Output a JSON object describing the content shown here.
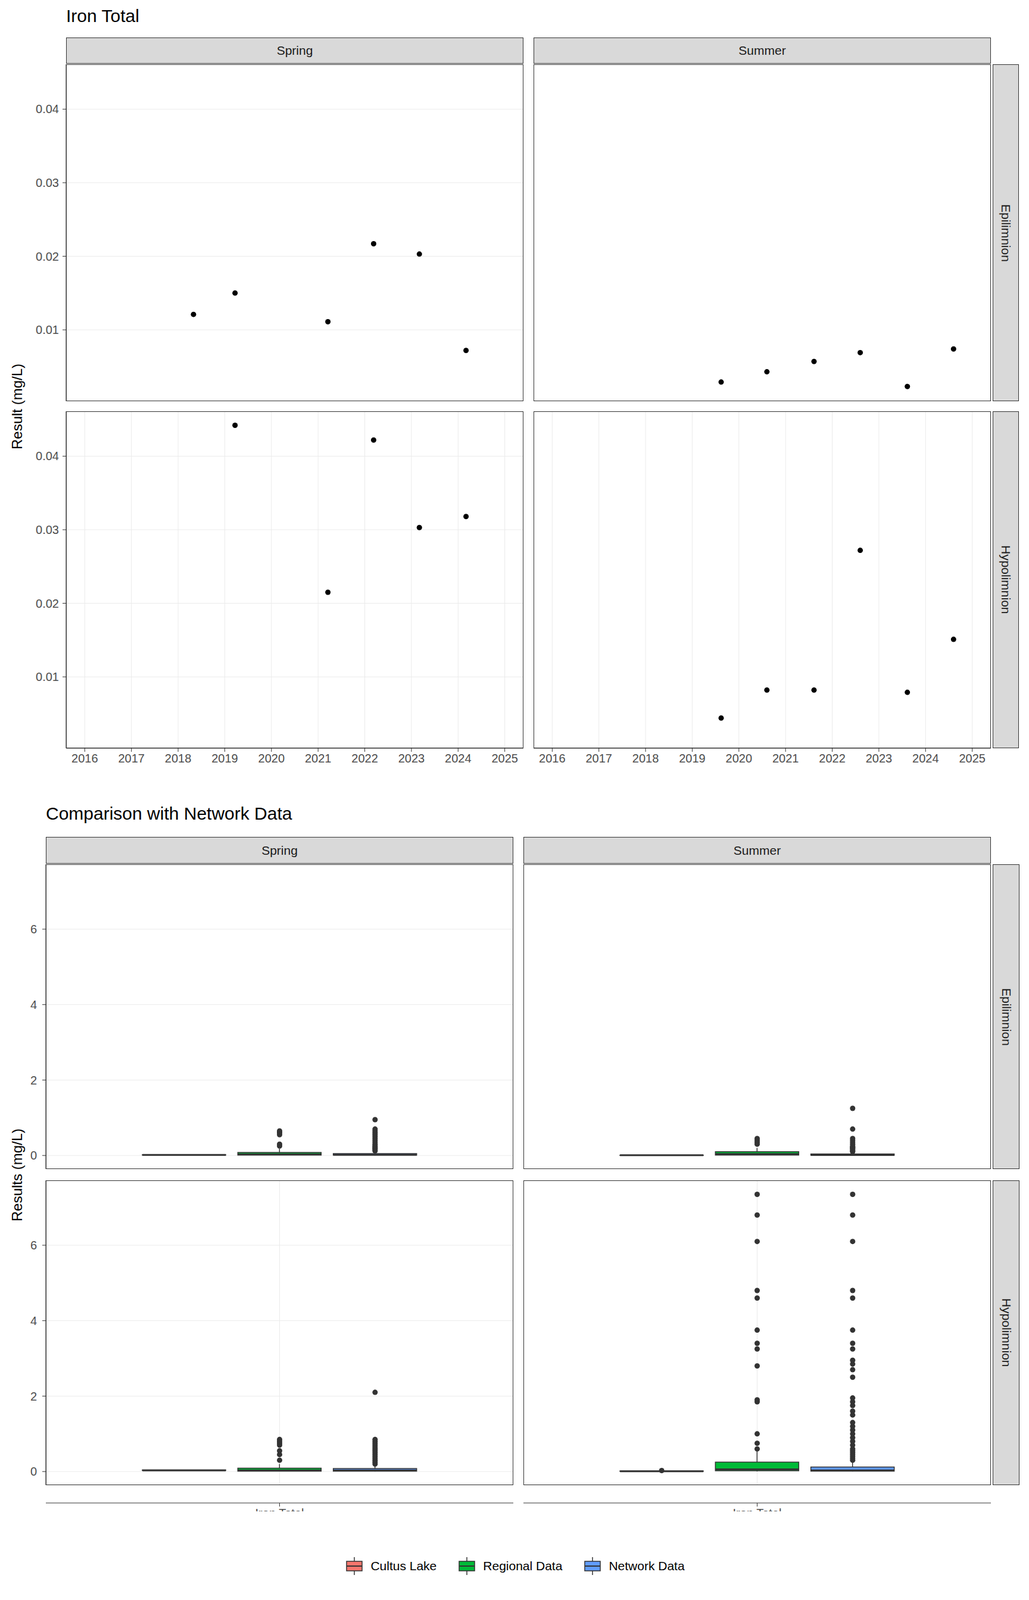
{
  "chart_data": [
    {
      "type": "scatter",
      "title": "Iron Total",
      "y_label": "Result (mg/L)",
      "columns": [
        "Spring",
        "Summer"
      ],
      "rows": [
        "Epilimnion",
        "Hypolimnion"
      ],
      "color": "#000000",
      "grid": true,
      "xlim": [
        2015.6,
        2025.4
      ],
      "xticks": [
        2016,
        2017,
        2018,
        2019,
        2020,
        2021,
        2022,
        2023,
        2024,
        2025
      ],
      "ylim": [
        0.0003,
        0.0461
      ],
      "yticks": [
        0.01,
        0.02,
        0.03,
        0.04
      ],
      "panels": [
        {
          "column": "Spring",
          "row": "Epilimnion",
          "x": [
            2018.33,
            2019.22,
            2021.21,
            2022.19,
            2023.17,
            2024.17
          ],
          "values": [
            0.0121,
            0.015,
            0.0111,
            0.0217,
            0.0203,
            0.0072
          ]
        },
        {
          "column": "Summer",
          "row": "Epilimnion",
          "x": [
            2019.62,
            2020.6,
            2021.61,
            2022.6,
            2023.61,
            2024.6
          ],
          "values": [
            0.0029,
            0.0043,
            0.0057,
            0.0069,
            0.0023,
            0.0074
          ]
        },
        {
          "column": "Spring",
          "row": "Hypolimnion",
          "x": [
            2019.22,
            2021.21,
            2022.19,
            2023.17,
            2024.17
          ],
          "values": [
            0.0442,
            0.0215,
            0.0422,
            0.0303,
            0.0318
          ]
        },
        {
          "column": "Summer",
          "row": "Hypolimnion",
          "x": [
            2019.62,
            2020.6,
            2021.61,
            2022.6,
            2023.61,
            2024.6
          ],
          "values": [
            0.0044,
            0.0082,
            0.0082,
            0.0272,
            0.0079,
            0.0151
          ]
        }
      ]
    },
    {
      "type": "box",
      "title": "Comparison with Network Data",
      "y_label": "Results (mg/L)",
      "categories": [
        "Iron Total"
      ],
      "columns": [
        "Spring",
        "Summer"
      ],
      "rows": [
        "Epilimnion",
        "Hypolimnion"
      ],
      "grid": true,
      "legend": "bottom",
      "ylim": [
        -0.36,
        7.72
      ],
      "yticks": [
        0,
        2,
        4,
        6
      ],
      "series": [
        {
          "name": "Cultus Lake",
          "color": "#F8766D"
        },
        {
          "name": "Regional Data",
          "color": "#00BA38"
        },
        {
          "name": "Network Data",
          "color": "#619CFF"
        }
      ],
      "panels": [
        {
          "column": "Spring",
          "row": "Epilimnion",
          "boxes": [
            {
              "min": 0.0072,
              "q1": 0.0114,
              "median": 0.0136,
              "q3": 0.019,
              "max": 0.0217,
              "outliers": []
            },
            {
              "min": 0.002,
              "q1": 0.01,
              "median": 0.03,
              "q3": 0.08,
              "max": 0.18,
              "outliers": [
                0.25,
                0.3,
                0.55,
                0.6,
                0.62,
                0.65
              ]
            },
            {
              "min": 0.001,
              "q1": 0.01,
              "median": 0.02,
              "q3": 0.05,
              "max": 0.11,
              "outliers": [
                0.12,
                0.15,
                0.18,
                0.2,
                0.23,
                0.26,
                0.3,
                0.35,
                0.4,
                0.45,
                0.5,
                0.55,
                0.6,
                0.65,
                0.7,
                0.95
              ]
            }
          ]
        },
        {
          "column": "Summer",
          "row": "Epilimnion",
          "boxes": [
            {
              "min": 0.0023,
              "q1": 0.0033,
              "median": 0.005,
              "q3": 0.0066,
              "max": 0.0074,
              "outliers": []
            },
            {
              "min": 0.002,
              "q1": 0.01,
              "median": 0.04,
              "q3": 0.1,
              "max": 0.2,
              "outliers": [
                0.3,
                0.35,
                0.4,
                0.45
              ]
            },
            {
              "min": 0.001,
              "q1": 0.005,
              "median": 0.015,
              "q3": 0.04,
              "max": 0.09,
              "outliers": [
                0.1,
                0.12,
                0.15,
                0.18,
                0.2,
                0.22,
                0.25,
                0.3,
                0.35,
                0.4,
                0.45,
                0.7,
                1.25
              ]
            }
          ]
        },
        {
          "column": "Spring",
          "row": "Hypolimnion",
          "boxes": [
            {
              "min": 0.0215,
              "q1": 0.0303,
              "median": 0.0318,
              "q3": 0.0422,
              "max": 0.0442,
              "outliers": []
            },
            {
              "min": 0.002,
              "q1": 0.01,
              "median": 0.03,
              "q3": 0.09,
              "max": 0.2,
              "outliers": [
                0.3,
                0.45,
                0.55,
                0.7,
                0.75,
                0.8,
                0.85
              ]
            },
            {
              "min": 0.001,
              "q1": 0.01,
              "median": 0.03,
              "q3": 0.08,
              "max": 0.18,
              "outliers": [
                0.2,
                0.25,
                0.3,
                0.35,
                0.4,
                0.45,
                0.5,
                0.55,
                0.6,
                0.65,
                0.7,
                0.75,
                0.8,
                0.85,
                2.1
              ]
            }
          ]
        },
        {
          "column": "Summer",
          "row": "Hypolimnion",
          "boxes": [
            {
              "min": 0.0044,
              "q1": 0.008,
              "median": 0.0082,
              "q3": 0.0134,
              "max": 0.0151,
              "outliers": [
                0.0272
              ]
            },
            {
              "min": 0.002,
              "q1": 0.02,
              "median": 0.06,
              "q3": 0.25,
              "max": 0.55,
              "outliers": [
                0.6,
                0.75,
                1.0,
                1.85,
                1.9,
                2.8,
                3.25,
                3.4,
                3.75,
                4.6,
                4.8,
                6.1,
                6.8,
                7.35
              ]
            },
            {
              "min": 0.001,
              "q1": 0.01,
              "median": 0.03,
              "q3": 0.12,
              "max": 0.26,
              "outliers": [
                0.3,
                0.35,
                0.4,
                0.45,
                0.5,
                0.55,
                0.6,
                0.7,
                0.8,
                0.9,
                1.0,
                1.1,
                1.2,
                1.3,
                1.5,
                1.6,
                1.75,
                1.85,
                1.95,
                2.5,
                2.7,
                2.85,
                2.95,
                3.25,
                3.4,
                3.75,
                4.6,
                4.8,
                6.1,
                6.8,
                7.35
              ]
            }
          ]
        }
      ]
    }
  ]
}
